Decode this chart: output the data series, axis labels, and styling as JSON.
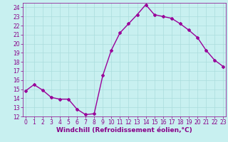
{
  "x": [
    0,
    1,
    2,
    3,
    4,
    5,
    6,
    7,
    8,
    9,
    10,
    11,
    12,
    13,
    14,
    15,
    16,
    17,
    18,
    19,
    20,
    21,
    22,
    23
  ],
  "y": [
    14.8,
    15.5,
    14.9,
    14.1,
    13.9,
    13.9,
    12.8,
    12.2,
    12.3,
    16.5,
    19.3,
    21.2,
    22.2,
    23.2,
    24.3,
    23.2,
    23.0,
    22.8,
    22.2,
    21.5,
    20.7,
    19.3,
    18.2,
    17.5
  ],
  "line_color": "#990099",
  "marker": "D",
  "marker_size": 2.0,
  "bg_color": "#c8f0f0",
  "grid_color": "#aadddd",
  "xlabel": "Windchill (Refroidissement éolien,°C)",
  "xlabel_color": "#880088",
  "tick_color": "#880088",
  "ylim": [
    12,
    24.5
  ],
  "yticks": [
    12,
    13,
    14,
    15,
    16,
    17,
    18,
    19,
    20,
    21,
    22,
    23,
    24
  ],
  "xticks": [
    0,
    1,
    2,
    3,
    4,
    5,
    6,
    7,
    8,
    9,
    10,
    11,
    12,
    13,
    14,
    15,
    16,
    17,
    18,
    19,
    20,
    21,
    22,
    23
  ],
  "line_width": 1.0,
  "tick_fontsize": 5.5,
  "xlabel_fontsize": 6.5,
  "xlim": [
    -0.3,
    23.3
  ]
}
